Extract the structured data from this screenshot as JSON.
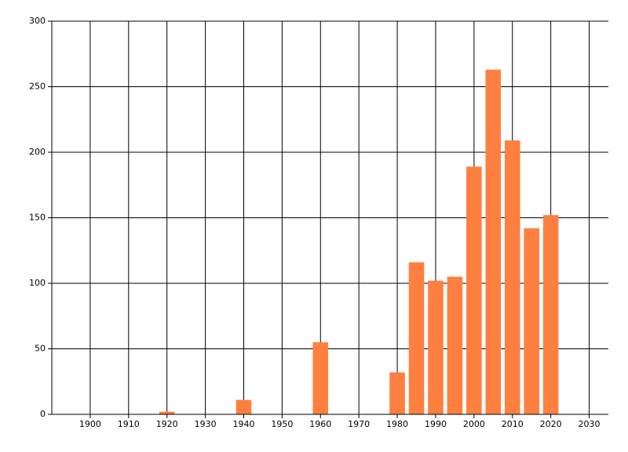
{
  "chart_data": {
    "type": "bar",
    "x": [
      1920,
      1940,
      1960,
      1980,
      1985,
      1990,
      1995,
      2000,
      2005,
      2010,
      2015,
      2020
    ],
    "values": [
      2,
      11,
      55,
      32,
      116,
      102,
      105,
      189,
      263,
      209,
      142,
      152
    ],
    "color": "#ff7f40",
    "xlim": [
      1890,
      2035
    ],
    "xticks": [
      1900,
      1910,
      1920,
      1930,
      1940,
      1950,
      1960,
      1970,
      1980,
      1990,
      2000,
      2010,
      2020,
      2030
    ],
    "ylim": [
      0,
      300
    ],
    "yticks": [
      0,
      50,
      100,
      150,
      200,
      250,
      300
    ],
    "grid": true
  }
}
